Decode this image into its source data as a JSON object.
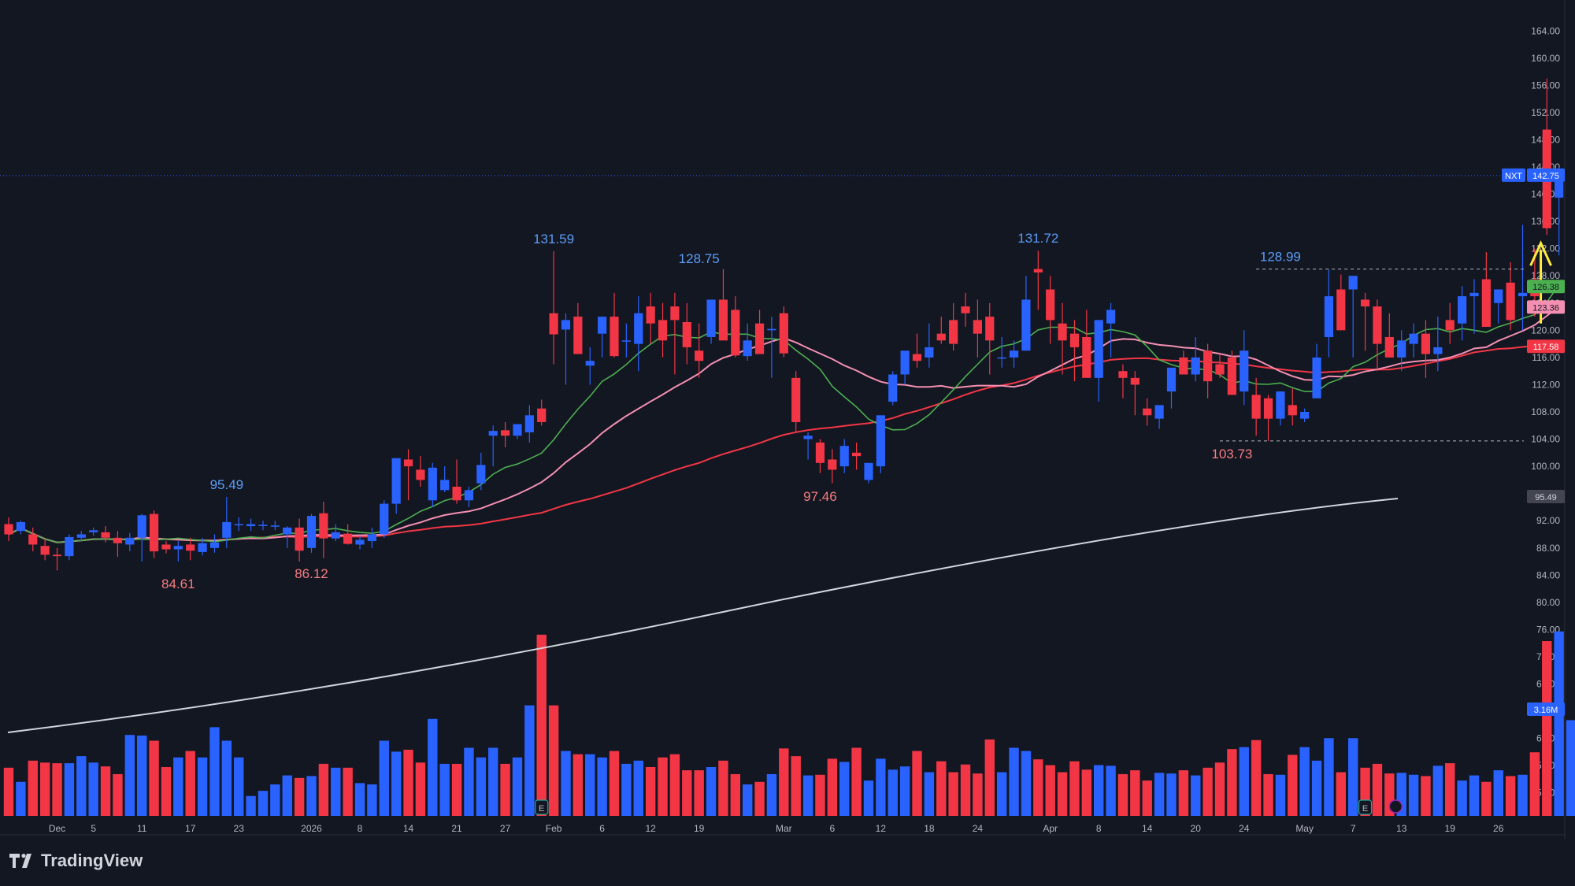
{
  "chart_data": {
    "type": "candlestick",
    "symbol": "NXT",
    "last_price": 142.75,
    "ylim": [
      50,
      166
    ],
    "y_ticks": [
      52,
      56,
      60,
      64,
      68,
      72,
      76,
      80,
      84,
      88,
      92,
      96,
      100,
      104,
      108,
      112,
      116,
      120,
      124,
      128,
      132,
      136,
      140,
      144,
      148,
      152,
      156,
      160,
      164
    ],
    "x_ticks": [
      {
        "i": 4,
        "label": "Dec"
      },
      {
        "i": 7,
        "label": "5"
      },
      {
        "i": 11,
        "label": "11"
      },
      {
        "i": 15,
        "label": "17"
      },
      {
        "i": 19,
        "label": "23"
      },
      {
        "i": 25,
        "label": "2026"
      },
      {
        "i": 29,
        "label": "8"
      },
      {
        "i": 33,
        "label": "14"
      },
      {
        "i": 37,
        "label": "21"
      },
      {
        "i": 41,
        "label": "27"
      },
      {
        "i": 45,
        "label": "Feb"
      },
      {
        "i": 49,
        "label": "6"
      },
      {
        "i": 53,
        "label": "12"
      },
      {
        "i": 57,
        "label": "19"
      },
      {
        "i": 64,
        "label": "Mar"
      },
      {
        "i": 68,
        "label": "6"
      },
      {
        "i": 72,
        "label": "12"
      },
      {
        "i": 76,
        "label": "18"
      },
      {
        "i": 80,
        "label": "24"
      },
      {
        "i": 86,
        "label": "Apr"
      },
      {
        "i": 90,
        "label": "8"
      },
      {
        "i": 94,
        "label": "14"
      },
      {
        "i": 98,
        "label": "20"
      },
      {
        "i": 102,
        "label": "24"
      },
      {
        "i": 107,
        "label": "May"
      },
      {
        "i": 111,
        "label": "7"
      },
      {
        "i": 115,
        "label": "13"
      },
      {
        "i": 119,
        "label": "19"
      },
      {
        "i": 123,
        "label": "26"
      }
    ],
    "candles": [
      [
        91.5,
        92.5,
        89,
        90,
        7.5
      ],
      [
        90.5,
        92,
        90,
        91.8,
        5.3
      ],
      [
        90,
        91,
        87.5,
        88.5,
        8.6
      ],
      [
        88.3,
        89.3,
        86.2,
        87,
        8.3
      ],
      [
        87,
        88,
        84.7,
        86.8,
        8.2
      ],
      [
        86.8,
        90,
        86.2,
        89.6,
        8.2
      ],
      [
        89.5,
        90.5,
        89,
        90,
        9.3
      ],
      [
        90.3,
        91,
        89.8,
        90.6,
        8.3
      ],
      [
        90.3,
        91.2,
        88.8,
        89.5,
        7.7
      ],
      [
        89.5,
        90.5,
        86.7,
        88.7,
        6.5
      ],
      [
        88.5,
        90.2,
        87.5,
        89.5,
        12.6
      ],
      [
        89.5,
        93,
        86,
        92.8,
        12.5
      ],
      [
        93,
        93.5,
        86.5,
        87.5,
        11.7
      ],
      [
        88.5,
        89,
        87.2,
        87.8,
        7.6
      ],
      [
        87.8,
        89,
        86,
        88.3,
        9.1
      ],
      [
        88.5,
        89.5,
        86.2,
        87.6,
        10.1
      ],
      [
        87.4,
        89.5,
        86.9,
        88.7,
        9.1
      ],
      [
        88,
        90,
        87.3,
        88.8,
        13.8
      ],
      [
        89.5,
        95.5,
        88,
        91.8,
        11.7
      ],
      [
        91.5,
        92.5,
        90.5,
        91.5,
        9.1
      ],
      [
        91.2,
        92.3,
        90.5,
        91.5,
        3.1
      ],
      [
        91.3,
        92,
        90.6,
        91.4,
        3.9
      ],
      [
        91.3,
        92,
        90.6,
        91.3,
        4.9
      ],
      [
        90,
        91.2,
        88,
        91,
        6.3
      ],
      [
        91,
        92.3,
        86,
        87.6,
        5.9
      ],
      [
        88,
        93,
        87.3,
        92.7,
        6.2
      ],
      [
        93.1,
        94.8,
        86.5,
        89.4,
        8.1
      ],
      [
        89.4,
        91.5,
        89,
        90.3,
        7.5
      ],
      [
        90.1,
        91.5,
        88.5,
        88.6,
        7.5
      ],
      [
        88.5,
        89.8,
        87.8,
        89.2,
        5.1
      ],
      [
        89,
        91,
        88,
        90,
        4.9
      ],
      [
        90,
        95,
        89.5,
        94.5,
        11.7
      ],
      [
        94.5,
        96,
        93,
        101.2,
        10
      ],
      [
        101,
        102.5,
        95,
        100,
        10.3
      ],
      [
        99.5,
        101.5,
        97,
        98,
        8.3
      ],
      [
        95,
        100.5,
        94,
        99.8,
        15.1
      ],
      [
        96.5,
        100,
        96.2,
        98,
        8.1
      ],
      [
        97,
        101,
        94.5,
        95,
        8.1
      ],
      [
        95,
        97,
        94,
        96.5,
        10.6
      ],
      [
        97.5,
        102,
        96.5,
        100.2,
        9.1
      ],
      [
        104.5,
        106,
        100,
        105.2,
        10.6
      ],
      [
        105.3,
        106.5,
        102.8,
        104.5,
        8.1
      ],
      [
        104.5,
        106,
        104,
        106.2,
        9.1
      ],
      [
        105,
        109,
        103.5,
        107.5,
        17.2
      ],
      [
        108.5,
        109.8,
        106,
        106.5,
        28.2
      ],
      [
        122.5,
        131.6,
        115,
        119.4,
        17.2
      ],
      [
        120.1,
        122.5,
        112,
        121.5,
        10.1
      ],
      [
        122,
        124,
        116.5,
        116.5,
        9.6
      ],
      [
        114.8,
        117.5,
        112,
        115.5,
        9.6
      ],
      [
        119.5,
        120.5,
        116,
        122,
        9.1
      ],
      [
        122,
        125.5,
        116,
        116.2,
        10.1
      ],
      [
        118.5,
        121,
        116,
        118.5,
        8.1
      ],
      [
        118,
        125,
        114,
        122.5,
        8.6
      ],
      [
        123.5,
        125.5,
        118,
        121,
        7.6
      ],
      [
        121.5,
        124,
        116,
        118.5,
        9.1
      ],
      [
        123.5,
        125.5,
        113.5,
        121.5,
        9.6
      ],
      [
        121.2,
        124,
        115,
        117.5,
        7.1
      ],
      [
        117,
        121,
        113,
        115.5,
        7.1
      ],
      [
        119,
        124.5,
        118,
        124.5,
        7.6
      ],
      [
        124.5,
        129,
        119,
        118.5,
        8.6
      ],
      [
        123,
        125,
        116,
        116.3,
        6.5
      ],
      [
        116.2,
        121,
        115.5,
        118.5,
        4.9
      ],
      [
        121,
        123,
        118,
        116.5,
        5.3
      ],
      [
        120,
        122,
        113,
        120.2,
        6.5
      ],
      [
        122.5,
        123.5,
        116,
        116.6,
        10.5
      ],
      [
        113,
        114,
        105,
        106.5,
        9.3
      ],
      [
        104,
        105,
        101,
        104.5,
        6.3
      ],
      [
        103.5,
        104,
        99,
        100.5,
        6.4
      ],
      [
        101,
        102.5,
        97.5,
        99.5,
        8.9
      ],
      [
        100,
        104,
        99,
        103,
        8.4
      ],
      [
        102,
        103.5,
        99.5,
        101.5,
        10.6
      ],
      [
        98,
        100,
        97.5,
        100.5,
        5.5
      ],
      [
        100,
        105.5,
        99,
        107.5,
        8.9
      ],
      [
        109.5,
        114,
        109,
        113.5,
        7.2
      ],
      [
        113.5,
        116.5,
        112,
        117,
        7.7
      ],
      [
        116.5,
        119.5,
        114.5,
        115.5,
        10.1
      ],
      [
        116,
        121,
        114.5,
        117.5,
        6.8
      ],
      [
        119.5,
        122,
        118,
        118.5,
        8.5
      ],
      [
        121.5,
        124,
        117,
        118,
        6.8
      ],
      [
        123.5,
        125.5,
        120.5,
        122.5,
        8
      ],
      [
        121.5,
        124.5,
        116,
        119.5,
        6.6
      ],
      [
        122,
        124,
        113.5,
        118.5,
        11.9
      ],
      [
        116,
        119,
        114.5,
        116,
        6.8
      ],
      [
        116,
        118.5,
        114.5,
        117,
        10.6
      ],
      [
        117,
        128,
        117,
        124.5,
        10.1
      ],
      [
        129,
        131.7,
        123,
        128.5,
        8.8
      ],
      [
        126,
        128,
        118,
        121.5,
        7.9
      ],
      [
        121,
        124,
        113.5,
        118.5,
        6.8
      ],
      [
        119.5,
        121.5,
        112.5,
        117.5,
        8.5
      ],
      [
        119,
        123,
        113,
        113,
        7.2
      ],
      [
        113,
        115,
        109.5,
        121.5,
        7.9
      ],
      [
        121,
        124,
        116,
        123,
        7.8
      ],
      [
        114,
        115,
        110,
        113,
        6.5
      ],
      [
        113,
        114,
        107.5,
        112,
        7.1
      ],
      [
        108.5,
        110,
        106,
        107.5,
        5.5
      ],
      [
        107,
        108.5,
        105.5,
        109,
        6.7
      ],
      [
        111,
        113,
        108.5,
        114.5,
        6.6
      ],
      [
        116,
        117,
        113.5,
        113.5,
        7.1
      ],
      [
        113.5,
        119,
        112.5,
        116,
        6.3
      ],
      [
        117,
        118,
        110,
        112.5,
        7.5
      ],
      [
        115,
        116.5,
        113,
        113.5,
        8.3
      ],
      [
        116,
        117,
        112,
        110.5,
        10.4
      ],
      [
        111,
        120,
        109,
        117,
        10.7
      ],
      [
        110.5,
        113,
        104.5,
        107,
        11.8
      ],
      [
        110,
        110.5,
        103.7,
        107,
        6.5
      ],
      [
        107,
        111,
        106,
        111,
        6.4
      ],
      [
        109,
        111.5,
        106,
        107.5,
        9.5
      ],
      [
        107,
        108.5,
        106.5,
        108,
        10.7
      ],
      [
        110,
        118,
        110,
        116,
        8.6
      ],
      [
        119,
        128.9,
        116,
        125,
        12.1
      ],
      [
        126,
        128.2,
        120,
        120,
        6.8
      ],
      [
        126,
        127.5,
        116,
        128
      ],
      [
        124.5,
        125.5,
        117,
        123.5,
        7.5
      ],
      [
        123.5,
        124.5,
        114,
        118,
        8.1
      ],
      [
        119,
        122.5,
        116,
        116,
        6.6
      ],
      [
        116,
        120,
        114,
        118.5,
        6.7
      ],
      [
        118,
        121,
        116,
        119.5,
        6.4
      ],
      [
        119.5,
        121.5,
        113,
        116.5,
        6.2
      ],
      [
        116.5,
        122,
        114,
        117.5,
        7.8
      ],
      [
        121.5,
        124,
        118,
        120,
        8.2
      ],
      [
        121,
        126.5,
        118.5,
        125
      ],
      [
        125,
        127.5,
        119.5,
        125.5
      ],
      [
        127.5,
        131.5,
        120.5,
        120.5
      ],
      [
        124,
        126,
        121,
        126
      ],
      [
        127,
        130,
        120,
        121.5
      ],
      [
        125,
        135.5,
        120,
        125.5
      ],
      [
        127.5,
        132,
        122,
        125
      ],
      [
        149.5,
        157,
        134,
        135
      ],
      [
        139.5,
        144,
        131,
        142.75
      ]
    ],
    "volumes": [
      7.5,
      5.3,
      8.6,
      8.3,
      8.2,
      8.2,
      9.3,
      8.3,
      7.7,
      6.5,
      12.6,
      12.5,
      11.7,
      7.6,
      9.1,
      10.1,
      9.1,
      13.8,
      11.7,
      9.1,
      3.1,
      3.9,
      4.9,
      6.3,
      5.9,
      6.2,
      8.1,
      7.5,
      7.5,
      5.1,
      4.9,
      11.7,
      10,
      10.3,
      8.3,
      15.1,
      8.1,
      8.1,
      10.6,
      9.1,
      10.6,
      8.1,
      9.1,
      17.2,
      28.2,
      17.2,
      10.1,
      9.6,
      9.6,
      9.1,
      10.1,
      8.1,
      8.6,
      7.6,
      9.1,
      9.6,
      7.1,
      7.1,
      7.6,
      8.6,
      6.5,
      4.9,
      5.3,
      6.5,
      10.5,
      9.3,
      6.3,
      6.4,
      8.9,
      8.4,
      10.6,
      5.5,
      8.9,
      7.2,
      7.7,
      10.1,
      6.8,
      8.5,
      6.8,
      8,
      6.6,
      11.9,
      6.8,
      10.6,
      10.1,
      8.8,
      7.9,
      6.8,
      8.5,
      7.2,
      7.9,
      7.8,
      6.5,
      7.1,
      5.5,
      6.7,
      6.6,
      7.1,
      6.3,
      7.5,
      8.3,
      10.4,
      10.7,
      11.8,
      6.5,
      6.4,
      9.5,
      10.7,
      8.6,
      12.1,
      6.8,
      12.1,
      7.5,
      8.1,
      6.6,
      6.7,
      6.4,
      6.2,
      7.8,
      8.2,
      5.5,
      6.3,
      5.3,
      7.1,
      6.2,
      6.4,
      9.9,
      27.2,
      28.7,
      14.9
    ],
    "up_color": "#2962ff",
    "down_color": "#f23645",
    "moving_averages": [
      {
        "label": "126.38",
        "color": "#4caf50",
        "value": 126.38
      },
      {
        "label": "123.36",
        "color": "#f48fb1",
        "value": 123.36
      },
      {
        "label": "117.58",
        "color": "#f23645",
        "value": 117.58
      },
      {
        "label": "95.49",
        "color": "#d1d4dc",
        "value": 95.49
      }
    ],
    "annotations": [
      {
        "text": "131.59",
        "i": 45,
        "price": 131.59,
        "kind": "high"
      },
      {
        "text": "128.75",
        "i": 57,
        "price": 128.75,
        "kind": "high"
      },
      {
        "text": "131.72",
        "i": 85,
        "price": 131.72,
        "kind": "high"
      },
      {
        "text": "128.99",
        "i": 105,
        "price": 128.99,
        "kind": "high"
      },
      {
        "text": "95.49",
        "i": 18,
        "price": 95.49,
        "kind": "high"
      },
      {
        "text": "84.61",
        "i": 14,
        "price": 84.61,
        "kind": "low"
      },
      {
        "text": "86.12",
        "i": 25,
        "price": 86.12,
        "kind": "low"
      },
      {
        "text": "97.46",
        "i": 67,
        "price": 97.46,
        "kind": "low"
      },
      {
        "text": "103.73",
        "i": 101,
        "price": 103.73,
        "kind": "low"
      }
    ],
    "volume_label": "3.16M",
    "volume_ticks": []
  },
  "price_labels": {
    "symbol": "NXT",
    "last": "142.75",
    "ma1": "126.38",
    "ma2": "123.36",
    "ma3": "117.58",
    "ma4": "95.49",
    "volume": "3.16M"
  },
  "watermark": {
    "text": "TradingView"
  }
}
